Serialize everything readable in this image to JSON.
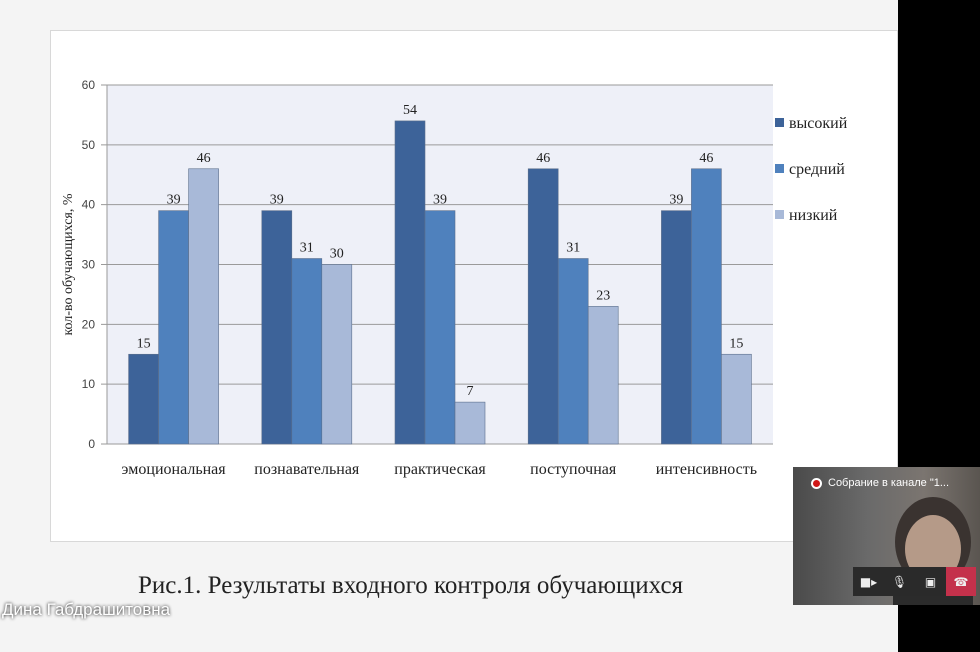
{
  "chart_data": {
    "type": "bar",
    "title": "",
    "xlabel": "",
    "ylabel": "кол-во обучающихся, %",
    "ylim": [
      0,
      60
    ],
    "yticks": [
      0,
      10,
      20,
      30,
      40,
      50,
      60
    ],
    "grid": true,
    "legend_position": "right",
    "categories": [
      "эмоциональная",
      "познавательная",
      "практическая",
      "поступочная",
      "интенсивность"
    ],
    "series": [
      {
        "name": "высокий",
        "color": "#3d6399",
        "values": [
          15,
          39,
          54,
          46,
          39
        ]
      },
      {
        "name": "средний",
        "color": "#4f81bd",
        "values": [
          39,
          31,
          39,
          31,
          46
        ]
      },
      {
        "name": "низкий",
        "color": "#a8b9d8",
        "values": [
          46,
          30,
          7,
          23,
          15
        ]
      }
    ],
    "plot_background": "#eef0f8"
  },
  "slide": {
    "caption": "Рис.1. Результаты входного контроля обучающихся"
  },
  "meeting": {
    "presenter_name": "Дина Габдрашитовна",
    "recording_label": "Собрание в канале \"1...",
    "controls": {
      "camera": "camera-icon",
      "mic": "microphone-icon",
      "share": "share-screen-icon",
      "hangup": "hang-up-icon"
    },
    "hangup_color": "#c4314b"
  }
}
